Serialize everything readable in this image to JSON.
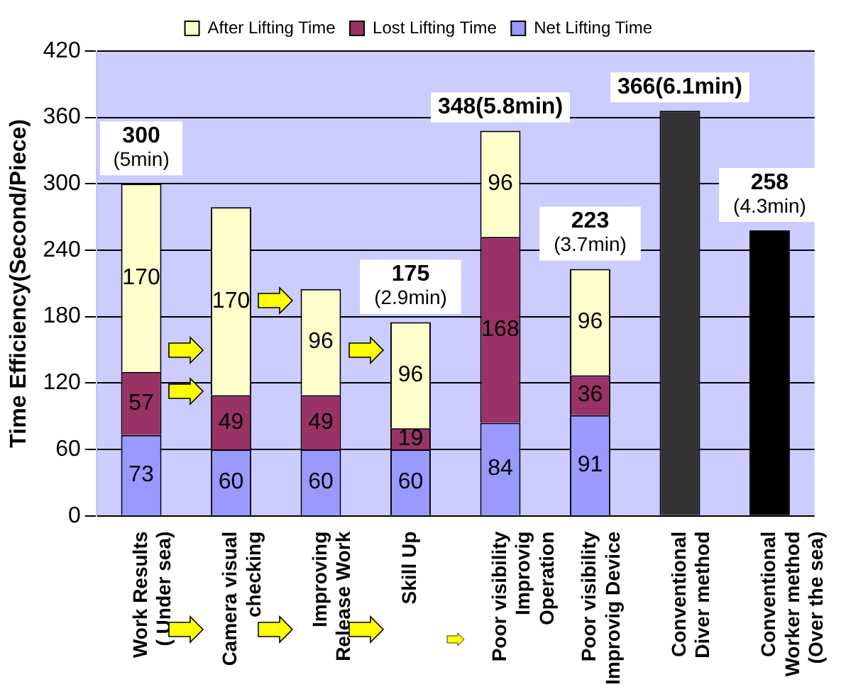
{
  "chart_data": {
    "type": "bar",
    "stacked": true,
    "ylabel": "Time Efficiency(Second/Piece)",
    "categories": [
      "Work Results\n( Under sea)",
      "Camera visual\nchecking",
      "Improving\nRelease Work",
      "Skill Up",
      "Poor visibility\nImprovig\nOperation",
      "Poor visibility\nImprovig Device",
      "Conventional\nDiver method",
      "Conventional\nWorker method\n(Over the sea)"
    ],
    "series": [
      {
        "name": "Net Lifting Time",
        "color": "#9999ff",
        "values": [
          73,
          60,
          60,
          60,
          84,
          91,
          null,
          null
        ],
        "value_labels": [
          "73",
          "60",
          "60",
          "60",
          "84",
          "91",
          null,
          null
        ]
      },
      {
        "name": "Lost Lifting Time",
        "color": "#993366",
        "values": [
          57,
          49,
          49,
          19,
          168,
          36,
          null,
          null
        ],
        "value_labels": [
          "57",
          "49",
          "49",
          "19",
          "168",
          "36",
          null,
          null
        ]
      },
      {
        "name": "After Lifting Time",
        "color": "#ffffcc",
        "values": [
          170,
          170,
          96,
          96,
          96,
          96,
          null,
          null
        ],
        "value_labels": [
          "170",
          "170",
          "96",
          "96",
          "96",
          "96",
          null,
          null
        ]
      },
      {
        "colors": [
          "#333333",
          "#333333",
          "#333333",
          "#333333",
          "#333333",
          "#333333",
          "#333333",
          "#000000"
        ],
        "values": [
          null,
          null,
          null,
          null,
          null,
          null,
          366,
          258
        ]
      }
    ],
    "totals": [
      "300\n(5min)",
      null,
      null,
      "175\n(2.9min)",
      "348(5.8min)",
      "223\n(3.7min)",
      "366(6.1min)",
      "258\n(4.3min)"
    ],
    "ylim": [
      0,
      420
    ],
    "yticks": [
      0,
      60,
      120,
      180,
      240,
      300,
      360,
      420
    ],
    "grid": "y",
    "legend": "top"
  }
}
